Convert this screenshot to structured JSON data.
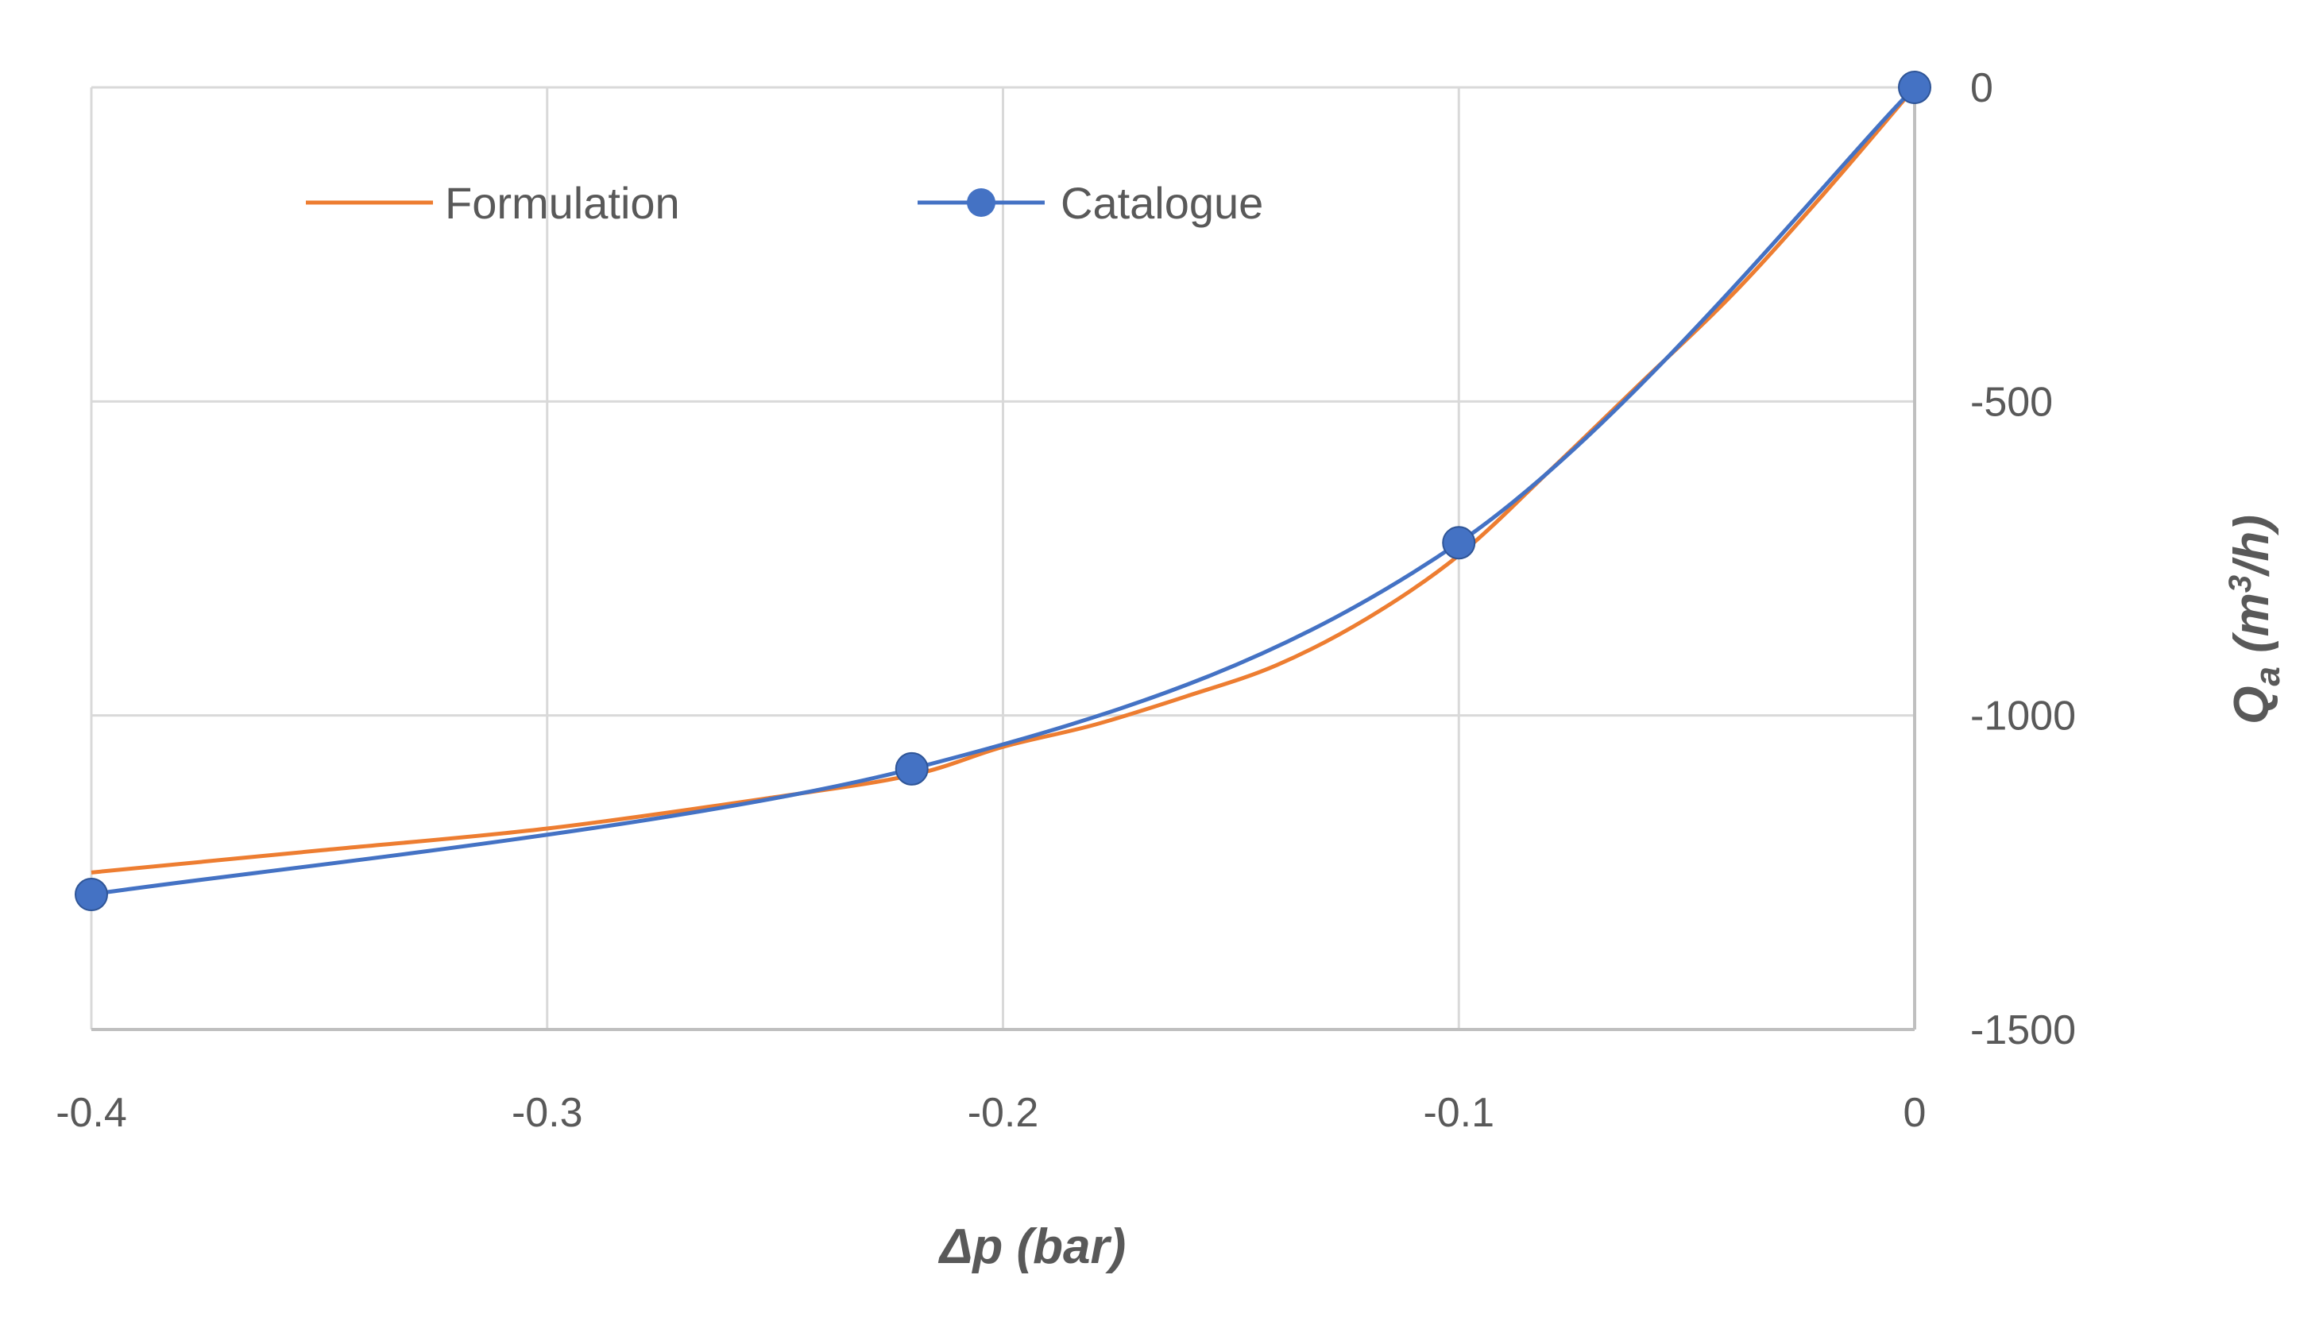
{
  "chart_data": {
    "type": "line",
    "title": "",
    "xlabel": "Δp (bar)",
    "ylabel": {
      "base": "Q",
      "sub": "a",
      "unit_pre": " (m",
      "sup": "3",
      "unit_post": "/h)"
    },
    "xlim": [
      -0.4,
      0
    ],
    "ylim": [
      -1500,
      0
    ],
    "x_ticks": [
      -0.4,
      -0.3,
      -0.2,
      -0.1,
      0
    ],
    "x_tick_labels": [
      "-0.4",
      "-0.3",
      "-0.2",
      "-0.1",
      "0"
    ],
    "y_ticks": [
      0,
      -500,
      -1000,
      -1500
    ],
    "y_tick_labels": [
      "0",
      "-500",
      "-1000",
      "-1500"
    ],
    "y_axis_position": "right",
    "x_axis_position": "bottom",
    "grid": true,
    "legend": "top-left",
    "series": [
      {
        "name": "Formulation",
        "color": "#ED7D31",
        "markers": false,
        "x": [
          -0.4,
          -0.35,
          -0.3,
          -0.25,
          -0.22,
          -0.2,
          -0.18,
          -0.16,
          -0.14,
          -0.12,
          -0.1,
          -0.08,
          -0.06,
          -0.04,
          -0.02,
          0
        ],
        "y": [
          -1250,
          -1215,
          -1180,
          -1130,
          -1095,
          -1050,
          -1015,
          -970,
          -920,
          -845,
          -745,
          -610,
          -470,
          -330,
          -170,
          0
        ]
      },
      {
        "name": "Catalogue",
        "color": "#4472C4",
        "markers": true,
        "x": [
          -0.4,
          -0.22,
          -0.1,
          0
        ],
        "y": [
          -1285,
          -1085,
          -725,
          0
        ]
      }
    ]
  }
}
